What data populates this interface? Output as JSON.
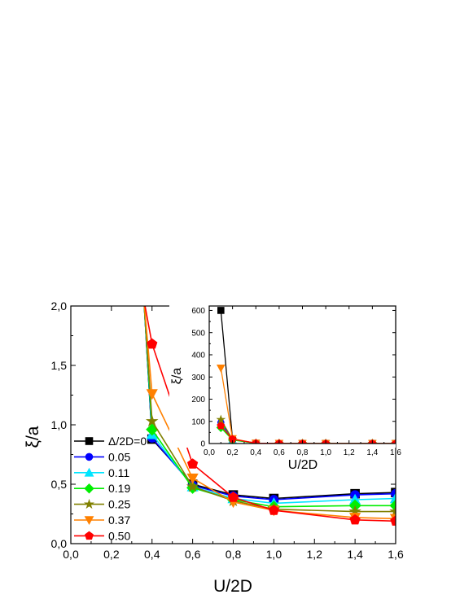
{
  "chart_data": [
    {
      "type": "line",
      "title": "",
      "xlabel": "U/2D",
      "ylabel": "ξ/a",
      "xlim": [
        0.0,
        1.6
      ],
      "ylim": [
        0.0,
        2.0
      ],
      "xticks": [
        "0,0",
        "0,2",
        "0,4",
        "0,6",
        "0,8",
        "1,0",
        "1,2",
        "1,4",
        "1,6"
      ],
      "yticks": [
        "0,0",
        "0,5",
        "1,0",
        "1,5",
        "2,0"
      ],
      "legend_position": "left",
      "grid": false,
      "series": [
        {
          "name": "Δ/2D=0",
          "color": "#000000",
          "marker": "square",
          "x": [
            0.36,
            0.4,
            0.6,
            0.8,
            1.0,
            1.4,
            1.6
          ],
          "y": [
            2.05,
            0.88,
            0.5,
            0.41,
            0.38,
            0.42,
            0.43
          ]
        },
        {
          "name": "0.05",
          "color": "#0000ff",
          "marker": "circle",
          "x": [
            0.36,
            0.4,
            0.6,
            0.8,
            1.0,
            1.4,
            1.6
          ],
          "y": [
            2.05,
            0.89,
            0.49,
            0.4,
            0.37,
            0.41,
            0.42
          ]
        },
        {
          "name": "0.11",
          "color": "#00e5ff",
          "marker": "triangle-up",
          "x": [
            0.36,
            0.4,
            0.6,
            0.8,
            1.0,
            1.4,
            1.6
          ],
          "y": [
            2.05,
            0.92,
            0.48,
            0.38,
            0.34,
            0.37,
            0.38
          ]
        },
        {
          "name": "0.19",
          "color": "#00ee00",
          "marker": "diamond",
          "x": [
            0.36,
            0.4,
            0.6,
            0.8,
            1.0,
            1.4,
            1.6
          ],
          "y": [
            2.05,
            0.96,
            0.47,
            0.37,
            0.31,
            0.32,
            0.32
          ]
        },
        {
          "name": "0.25",
          "color": "#808000",
          "marker": "star",
          "x": [
            0.36,
            0.4,
            0.6,
            0.8,
            1.0,
            1.4,
            1.6
          ],
          "y": [
            2.05,
            1.03,
            0.48,
            0.36,
            0.29,
            0.27,
            0.27
          ]
        },
        {
          "name": "0.37",
          "color": "#ff8000",
          "marker": "triangle-down",
          "x": [
            0.36,
            0.4,
            0.6,
            0.8,
            1.0,
            1.4,
            1.6
          ],
          "y": [
            2.05,
            1.26,
            0.55,
            0.35,
            0.28,
            0.22,
            0.21
          ]
        },
        {
          "name": "0.50",
          "color": "#ff0000",
          "marker": "pentagon",
          "x": [
            0.36,
            0.4,
            0.6,
            0.8,
            1.0,
            1.4,
            1.6
          ],
          "y": [
            2.05,
            1.68,
            0.67,
            0.39,
            0.28,
            0.2,
            0.19
          ]
        }
      ]
    },
    {
      "type": "line",
      "title": "",
      "role": "inset",
      "xlabel": "U/2D",
      "ylabel": "ξ/a",
      "xlim": [
        0.0,
        1.6
      ],
      "ylim": [
        0,
        620
      ],
      "xticks": [
        "0,0",
        "0,2",
        "0,4",
        "0,6",
        "0,8",
        "1,0",
        "1,2",
        "1,4",
        "1,6"
      ],
      "yticks": [
        "0",
        "100",
        "200",
        "300",
        "400",
        "500",
        "600"
      ],
      "grid": false,
      "series": [
        {
          "color": "#000000",
          "marker": "square",
          "x": [
            0.1,
            0.2,
            0.4,
            0.6,
            0.8,
            1.0,
            1.4,
            1.6
          ],
          "y": [
            600,
            20,
            1,
            0.5,
            0.4,
            0.4,
            0.4,
            0.4
          ]
        },
        {
          "color": "#0000ff",
          "marker": "circle",
          "x": [
            0.1,
            0.2,
            0.4,
            0.6,
            0.8,
            1.0,
            1.4,
            1.6
          ],
          "y": [
            95,
            18,
            1,
            0.5,
            0.4,
            0.4,
            0.4,
            0.4
          ]
        },
        {
          "color": "#00e5ff",
          "marker": "triangle-up",
          "x": [
            0.1,
            0.2,
            0.4,
            0.6,
            0.8,
            1.0,
            1.4,
            1.6
          ],
          "y": [
            85,
            17,
            1,
            0.5,
            0.4,
            0.3,
            0.4,
            0.4
          ]
        },
        {
          "color": "#00ee00",
          "marker": "diamond",
          "x": [
            0.1,
            0.2,
            0.4,
            0.6,
            0.8,
            1.0,
            1.4,
            1.6
          ],
          "y": [
            72,
            16,
            1,
            0.5,
            0.4,
            0.3,
            0.3,
            0.3
          ]
        },
        {
          "color": "#808000",
          "marker": "star",
          "x": [
            0.1,
            0.2,
            0.4,
            0.6,
            0.8,
            1.0,
            1.4,
            1.6
          ],
          "y": [
            108,
            19,
            1,
            0.5,
            0.4,
            0.3,
            0.3,
            0.3
          ]
        },
        {
          "color": "#ff8000",
          "marker": "triangle-down",
          "x": [
            0.1,
            0.2,
            0.4,
            0.6,
            0.8,
            1.0,
            1.4,
            1.6
          ],
          "y": [
            340,
            22,
            1.3,
            0.6,
            0.4,
            0.3,
            0.2,
            0.2
          ]
        },
        {
          "color": "#ff0000",
          "marker": "pentagon",
          "x": [
            0.1,
            0.2,
            0.4,
            0.6,
            0.8,
            1.0,
            1.4,
            1.6
          ],
          "y": [
            80,
            20,
            1.7,
            0.7,
            0.4,
            0.3,
            0.2,
            0.2
          ]
        }
      ]
    }
  ]
}
